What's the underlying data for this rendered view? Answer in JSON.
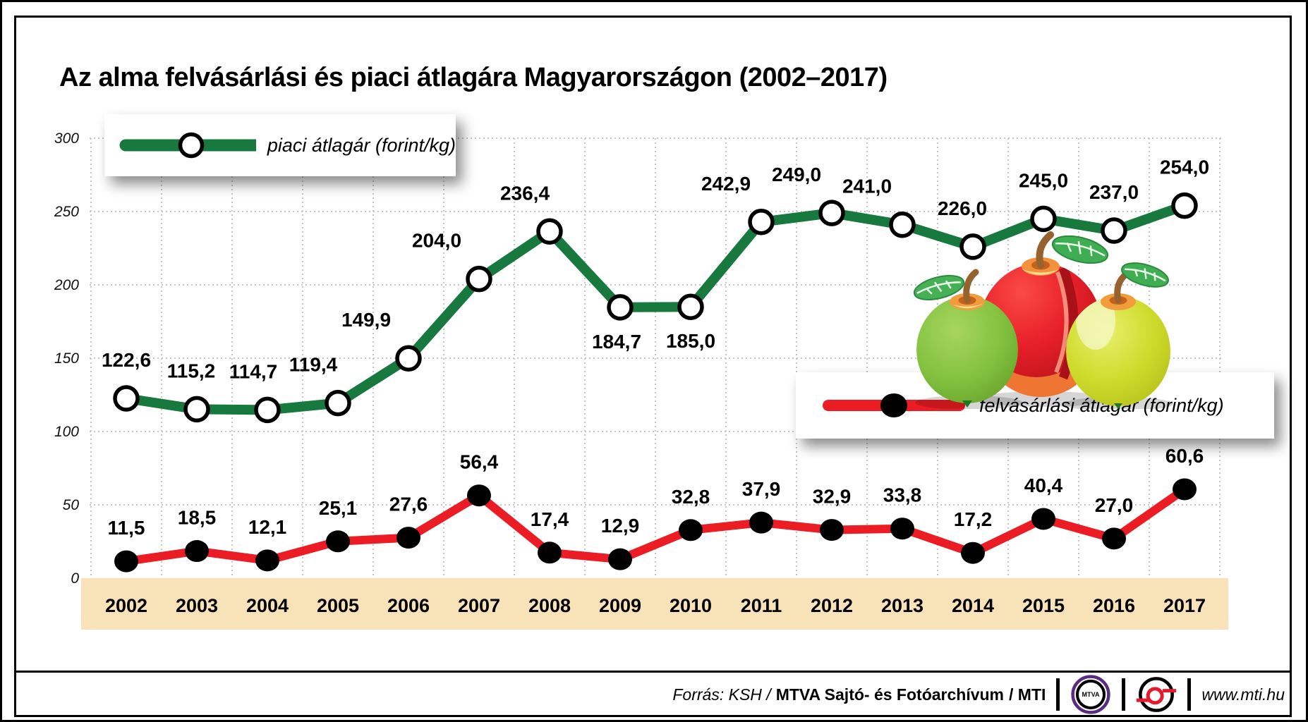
{
  "title": "Az alma felvásárlási és piaci átlagára Magyarországon (2002–2017)",
  "legends": {
    "piaci": "piaci átlagár (forint/kg)",
    "felvasarlasi": "felvásárlási átlagár (forint/kg)"
  },
  "chart_data": {
    "type": "line",
    "x": [
      2002,
      2003,
      2004,
      2005,
      2006,
      2007,
      2008,
      2009,
      2010,
      2011,
      2012,
      2013,
      2014,
      2015,
      2016,
      2017
    ],
    "yticks": [
      0,
      50,
      100,
      150,
      200,
      250,
      300
    ],
    "ylim": [
      0,
      300
    ],
    "grid": "dotted",
    "legend_position": "inside",
    "series": [
      {
        "name": "piaci átlagár (forint/kg)",
        "color": "#18793f",
        "marker": "open-circle",
        "values": [
          122.6,
          115.2,
          114.7,
          119.4,
          149.9,
          204.0,
          236.4,
          184.7,
          185.0,
          242.9,
          249.0,
          241.0,
          226.0,
          245.0,
          237.0,
          254.0
        ],
        "labels": [
          "122,6",
          "115,2",
          "114,7",
          "119,4",
          "149,9",
          "204,0",
          "236,4",
          "184,7",
          "185,0",
          "242,9",
          "249,0",
          "241,0",
          "226,0",
          "245,0",
          "237,0",
          "254,0"
        ]
      },
      {
        "name": "felvásárlási átlagár (forint/kg)",
        "color": "#ec1c24",
        "marker": "filled-circle",
        "values": [
          11.5,
          18.5,
          12.1,
          25.1,
          27.6,
          56.4,
          17.4,
          12.9,
          32.8,
          37.9,
          32.9,
          33.8,
          17.2,
          40.4,
          27.0,
          60.6
        ],
        "labels": [
          "11,5",
          "18,5",
          "12,1",
          "25,1",
          "27,6",
          "56,4",
          "17,4",
          "12,9",
          "32,8",
          "37,9",
          "32,9",
          "33,8",
          "17,2",
          "40,4",
          "27,0",
          "60,6"
        ]
      }
    ]
  },
  "footer": {
    "source_italic": "Forrás: KSH /",
    "source_bold": "MTVA Sajtó- és Fotóarchívum",
    "source_end": "/ MTI",
    "mtva_text": "MTVA",
    "website": "www.mti.hu"
  },
  "colors": {
    "green": "#18793f",
    "red": "#ec1c24",
    "band": "#f8e3b9",
    "grid": "#c5c5c5",
    "mtva_purple": "#5b2b82"
  },
  "icons": {
    "apples": "three-apples-illustration",
    "mtva_logo": "mtva-circle-logo",
    "mti_logo": "mti-circle-logo"
  }
}
